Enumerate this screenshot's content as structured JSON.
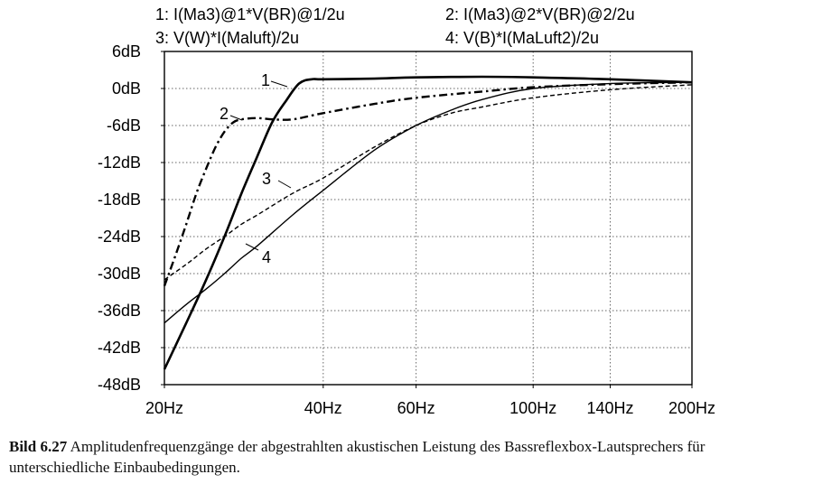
{
  "chart_data": {
    "type": "line",
    "x_scale": "log",
    "x_ticks": [
      {
        "value": 20,
        "label": "20Hz"
      },
      {
        "value": 40,
        "label": "40Hz"
      },
      {
        "value": 60,
        "label": "60Hz"
      },
      {
        "value": 100,
        "label": "100Hz"
      },
      {
        "value": 140,
        "label": "140Hz"
      },
      {
        "value": 200,
        "label": "200Hz"
      }
    ],
    "y_ticks": [
      {
        "value": 6,
        "label": "6dB"
      },
      {
        "value": 0,
        "label": "0dB"
      },
      {
        "value": -6,
        "label": "-6dB"
      },
      {
        "value": -12,
        "label": "-12dB"
      },
      {
        "value": -18,
        "label": "-18dB"
      },
      {
        "value": -24,
        "label": "-24dB"
      },
      {
        "value": -30,
        "label": "-30dB"
      },
      {
        "value": -36,
        "label": "-36dB"
      },
      {
        "value": -42,
        "label": "-42dB"
      },
      {
        "value": -48,
        "label": "-48dB"
      }
    ],
    "xlim": [
      20,
      200
    ],
    "ylim": [
      -48,
      6
    ],
    "grid": true,
    "legend_position": "top",
    "legend": [
      "1: I(Ma3)@1*V(BR)@1/2u",
      "2: I(Ma3)@2*V(BR)@2/2u",
      "3: V(W)*I(Maluft)/2u",
      "4: V(B)*I(MaLuft2)/2u"
    ],
    "series": [
      {
        "label": "1",
        "style": "solid-thick",
        "x": [
          20,
          22,
          24,
          26,
          28,
          30,
          32,
          34,
          36,
          38,
          40,
          50,
          60,
          80,
          100,
          140,
          200
        ],
        "y": [
          -45.5,
          -38,
          -31,
          -24,
          -17,
          -11,
          -5.5,
          -2,
          0.8,
          1.5,
          1.5,
          1.6,
          1.8,
          1.9,
          1.8,
          1.5,
          1.0
        ]
      },
      {
        "label": "2",
        "style": "dash-dot",
        "x": [
          20,
          21,
          22,
          23,
          24,
          25,
          26,
          27,
          28,
          30,
          32,
          35,
          40,
          50,
          60,
          80,
          100,
          140,
          200
        ],
        "y": [
          -32,
          -27,
          -22,
          -17,
          -13,
          -9.5,
          -7,
          -5.5,
          -5,
          -4.8,
          -5,
          -5,
          -4,
          -2.5,
          -1.5,
          -0.5,
          0.2,
          0.7,
          1.0
        ]
      },
      {
        "label": "3",
        "style": "dashed",
        "x": [
          20,
          22,
          24,
          26,
          28,
          30,
          35,
          40,
          50,
          60,
          70,
          80,
          100,
          140,
          200
        ],
        "y": [
          -31,
          -28.5,
          -26,
          -24,
          -22,
          -20.5,
          -17,
          -14.5,
          -9.5,
          -6,
          -4,
          -3,
          -1.5,
          -0.2,
          0.6
        ]
      },
      {
        "label": "4",
        "style": "solid-thin",
        "x": [
          20,
          22,
          24,
          26,
          28,
          30,
          35,
          40,
          50,
          60,
          70,
          80,
          100,
          140,
          200
        ],
        "y": [
          -38,
          -35,
          -32.5,
          -30,
          -27.5,
          -25.5,
          -20.5,
          -16.5,
          -10,
          -6,
          -3.5,
          -1.8,
          0,
          0.8,
          1.0
        ]
      }
    ],
    "curve_labels": [
      {
        "text": "1",
        "x": 33,
        "y": 1.4
      },
      {
        "text": "2",
        "x": 24.5,
        "y": -3.8
      },
      {
        "text": "3",
        "x": 36,
        "y": -14.5
      },
      {
        "text": "4",
        "x": 33,
        "y": -26.5
      }
    ],
    "caption_label": "Bild 6.27",
    "caption_text": "Amplitudenfrequenzgänge der abgestrahlten akustischen Leistung des Bassreflexbox-Lautsprechers für unterschiedliche Einbaubedingungen."
  }
}
